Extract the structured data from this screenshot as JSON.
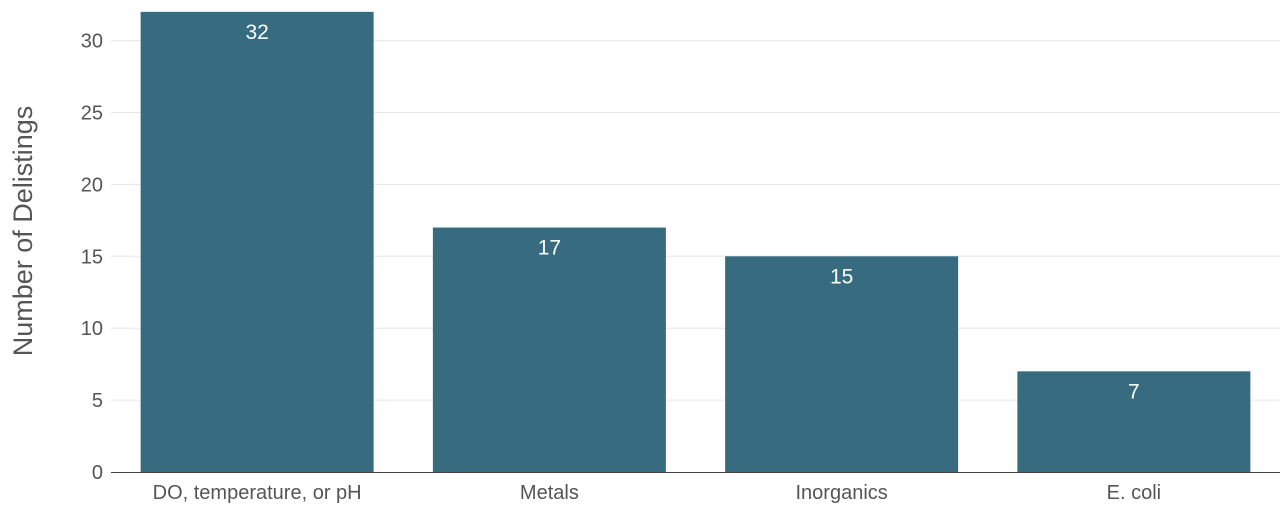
{
  "chart_data": {
    "type": "bar",
    "categories": [
      "DO, temperature, or pH",
      "Metals",
      "Inorganics",
      "E. coli"
    ],
    "values": [
      32,
      17,
      15,
      7
    ],
    "data_labels": [
      "32",
      "17",
      "15",
      "7"
    ],
    "title": "",
    "xlabel": "",
    "ylabel": "Number of Delistings",
    "ylim": [
      0,
      32
    ],
    "yticks": [
      0,
      5,
      10,
      15,
      20,
      25,
      30
    ],
    "grid": true,
    "legend": "none",
    "colors": {
      "bar": "#376b80",
      "grid": "#e6e6e6",
      "axis": "#444444",
      "text": "#555555",
      "label": "#ffffff"
    }
  }
}
